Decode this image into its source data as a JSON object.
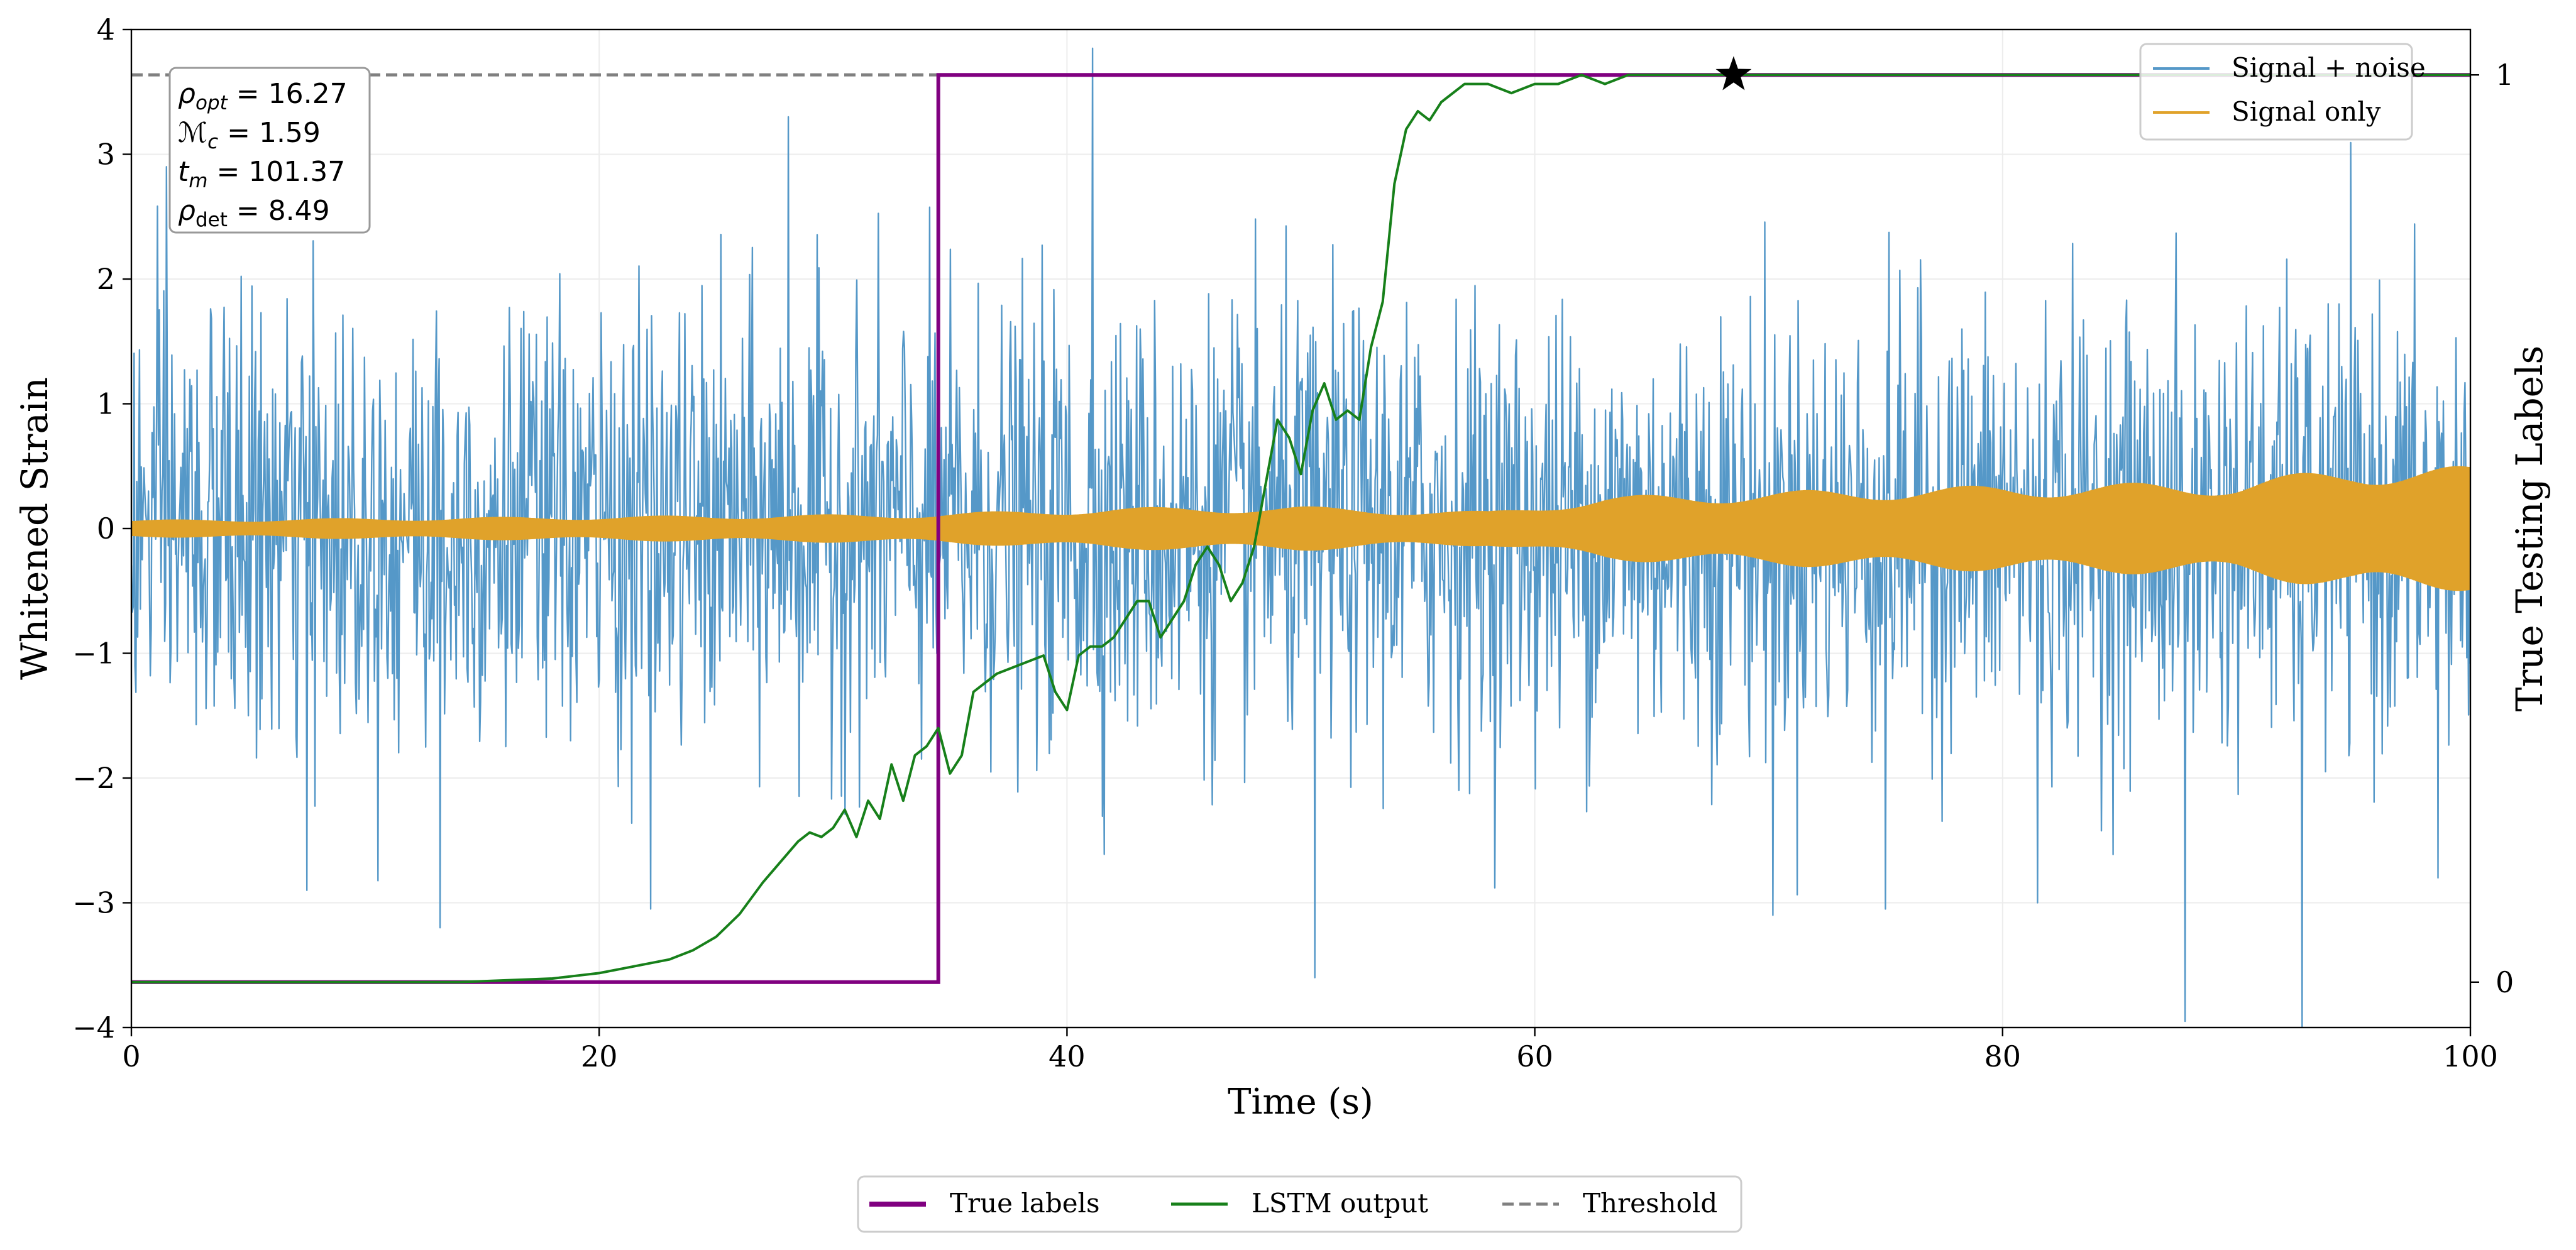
{
  "chart_data": {
    "type": "line",
    "xlabel": "Time (s)",
    "ylabel_left": "Whitened Strain",
    "ylabel_right": "True Testing Labels",
    "xlim": [
      0,
      100
    ],
    "ylim_left": [
      -4,
      4
    ],
    "ylim_right": [
      -0.05,
      1.05
    ],
    "x_ticks": [
      "0",
      "20",
      "40",
      "60",
      "80",
      "100"
    ],
    "y_ticks_left": [
      "−4",
      "−3",
      "−2",
      "−1",
      "0",
      "1",
      "2",
      "3",
      "4"
    ],
    "y_ticks_right": [
      "0",
      "1"
    ],
    "grid": true,
    "annotation": {
      "lines": [
        {
          "sym": "ρ",
          "sub": "opt",
          "sub_italic": true,
          "value": "16.27"
        },
        {
          "sym": "ℳ",
          "sub": "c",
          "sub_italic": true,
          "value": "1.59"
        },
        {
          "sym": "t",
          "sub": "m",
          "sub_italic": true,
          "value": "101.37"
        },
        {
          "sym": "ρ",
          "sub": "det",
          "sub_italic": false,
          "value": "8.49"
        }
      ]
    },
    "legend_upper": [
      "Signal + noise",
      "Signal only"
    ],
    "legend_lower": [
      "True labels",
      "LSTM output",
      "Threshold"
    ],
    "series": {
      "signal_noise": {
        "name": "Signal + noise",
        "color": "#5598c8",
        "typical_amplitude": 1.4,
        "peaks": [
          [
            41.1,
            3.85
          ],
          [
            1.5,
            2.9
          ],
          [
            28.1,
            3.3
          ],
          [
            7.5,
            -2.9
          ],
          [
            13.2,
            -3.2
          ],
          [
            22.2,
            -3.05
          ],
          [
            50.6,
            -3.6
          ],
          [
            70.2,
            -3.1
          ],
          [
            75.0,
            -3.05
          ],
          [
            81.5,
            -3.0
          ],
          [
            87.8,
            -3.95
          ],
          [
            92.8,
            -4.0
          ],
          [
            98.6,
            -2.8
          ]
        ]
      },
      "signal_only": {
        "name": "Signal only",
        "color": "#e0a22a",
        "envelope": [
          [
            0,
            0.07
          ],
          [
            20,
            0.1
          ],
          [
            34,
            0.12
          ],
          [
            42,
            0.17
          ],
          [
            50,
            0.18
          ],
          [
            55,
            0.15
          ],
          [
            58,
            0.14
          ],
          [
            63,
            0.26
          ],
          [
            70,
            0.3
          ],
          [
            80,
            0.35
          ],
          [
            90,
            0.38
          ],
          [
            95,
            0.5
          ],
          [
            100,
            0.5
          ]
        ]
      },
      "true_labels": {
        "name": "True labels",
        "color": "#800080",
        "x": [
          0,
          34.5,
          34.5,
          100
        ],
        "y": [
          0,
          0,
          1,
          1
        ]
      },
      "lstm_output": {
        "name": "LSTM output",
        "color": "#17801a",
        "x": [
          0,
          14,
          16,
          18,
          19,
          20,
          21,
          22,
          23,
          24,
          25,
          26,
          27,
          28,
          28.5,
          29,
          29.5,
          30,
          30.5,
          31,
          31.5,
          32,
          32.5,
          33,
          33.5,
          34,
          34.5,
          35,
          35.5,
          36,
          37,
          38,
          39,
          39.5,
          40,
          40.5,
          41,
          41.5,
          42,
          42.5,
          43,
          43.5,
          44,
          44.5,
          45,
          45.5,
          46,
          46.5,
          47,
          47.5,
          48,
          48.5,
          49,
          49.5,
          50,
          50.5,
          51,
          51.5,
          52,
          52.5,
          53,
          53.5,
          54,
          54.5,
          55,
          55.5,
          56,
          57,
          58,
          59,
          60,
          61,
          62,
          63,
          64,
          65,
          70,
          80,
          90,
          100
        ],
        "y": [
          0,
          0,
          0.002,
          0.004,
          0.007,
          0.01,
          0.015,
          0.02,
          0.025,
          0.035,
          0.05,
          0.075,
          0.11,
          0.14,
          0.155,
          0.165,
          0.16,
          0.17,
          0.19,
          0.16,
          0.2,
          0.18,
          0.24,
          0.2,
          0.25,
          0.26,
          0.28,
          0.23,
          0.25,
          0.32,
          0.34,
          0.35,
          0.36,
          0.32,
          0.3,
          0.36,
          0.37,
          0.37,
          0.38,
          0.4,
          0.42,
          0.42,
          0.38,
          0.4,
          0.42,
          0.46,
          0.48,
          0.46,
          0.42,
          0.44,
          0.48,
          0.55,
          0.62,
          0.6,
          0.56,
          0.63,
          0.66,
          0.62,
          0.63,
          0.62,
          0.7,
          0.75,
          0.88,
          0.94,
          0.96,
          0.95,
          0.97,
          0.99,
          0.99,
          0.98,
          0.99,
          0.99,
          1.0,
          0.99,
          1.0,
          1.0,
          1.0,
          1.0,
          1.0,
          1.0
        ]
      },
      "threshold": {
        "name": "Threshold",
        "color": "#808080",
        "y": 1.0
      }
    },
    "detection_marker": {
      "type": "star",
      "x": 68.5,
      "y": 1.0,
      "color": "#000000"
    }
  }
}
